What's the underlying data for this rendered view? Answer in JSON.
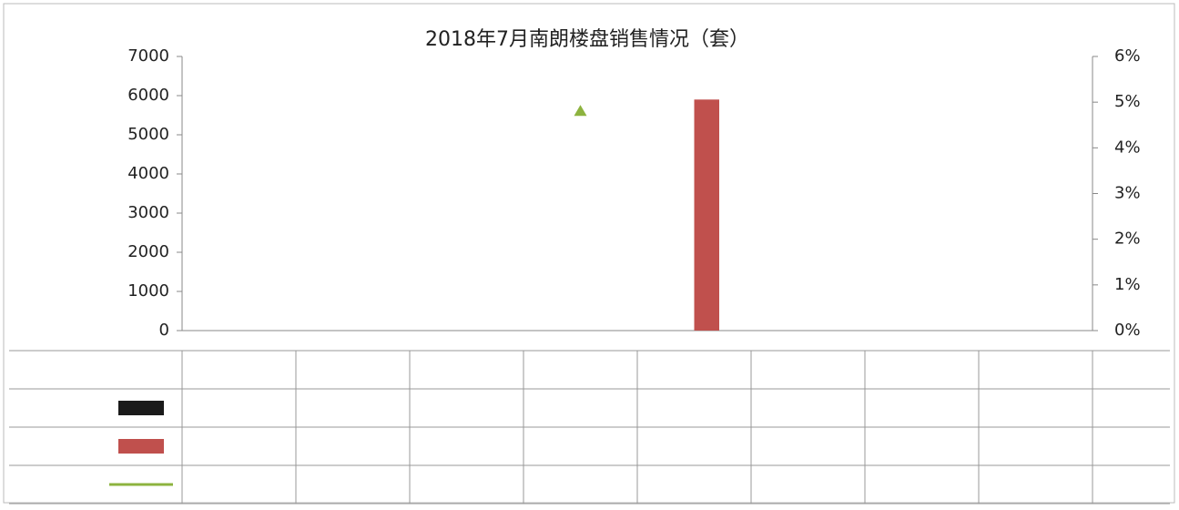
{
  "chart_data": {
    "type": "combo",
    "title": "2018年7月南朗楼盘销售情况（套）",
    "categories": [
      null,
      null,
      null,
      null,
      null,
      null,
      null,
      null
    ],
    "series": [
      {
        "type": "bar",
        "color": "#1a1a1a",
        "values": [
          null,
          null,
          null,
          null,
          null,
          null,
          null,
          null
        ]
      },
      {
        "type": "bar",
        "color": "#c0504d",
        "values": [
          null,
          null,
          null,
          null,
          5900,
          null,
          null,
          null
        ]
      },
      {
        "type": "line",
        "axis": "y2",
        "color": "#8db33f",
        "values": [
          null,
          null,
          null,
          4.8,
          null,
          null,
          null,
          null
        ]
      }
    ],
    "ylim": [
      0,
      7000
    ],
    "yticks": [
      0,
      1000,
      2000,
      3000,
      4000,
      5000,
      6000,
      7000
    ],
    "y2lim": [
      0,
      6
    ],
    "y2ticks": [
      {
        "value": 0,
        "label": "0%"
      },
      {
        "value": 1,
        "label": "1%"
      },
      {
        "value": 2,
        "label": "2%"
      },
      {
        "value": 3,
        "label": "3%"
      },
      {
        "value": 4,
        "label": "4%"
      },
      {
        "value": 5,
        "label": "5%"
      },
      {
        "value": 6,
        "label": "6%"
      }
    ]
  }
}
